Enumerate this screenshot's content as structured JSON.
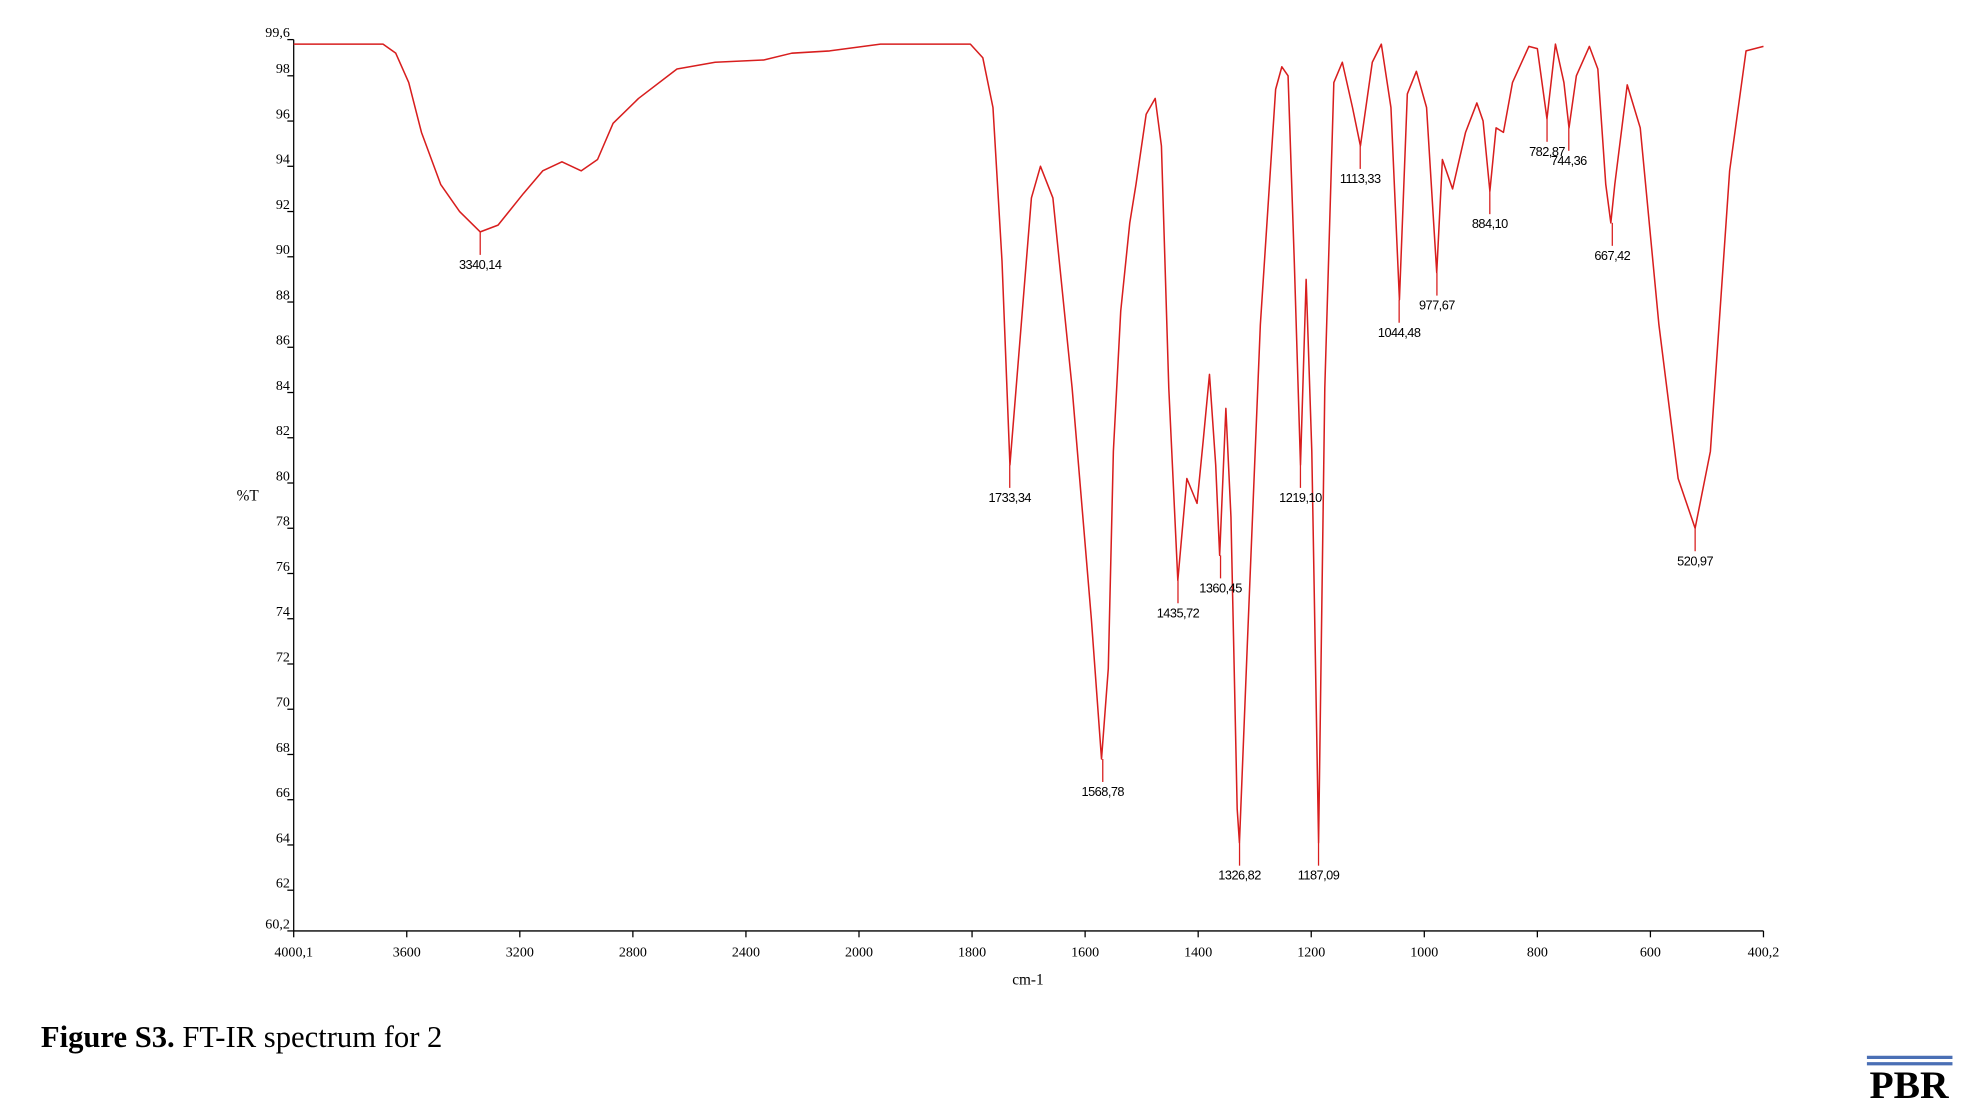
{
  "chart_data": {
    "type": "line",
    "xlabel": "cm-1",
    "ylabel": "%T",
    "color": "#d81e1e",
    "xlim": [
      4000.1,
      400.2
    ],
    "ylim": [
      60.2,
      99.6
    ],
    "xticks": [
      {
        "value": 4000.1,
        "label": "4000,1"
      },
      3600,
      3200,
      2800,
      2400,
      2000,
      1800,
      1600,
      1400,
      1200,
      1000,
      800,
      600,
      {
        "value": 400.2,
        "label": "400,2"
      }
    ],
    "yticks": [
      {
        "value": 60.2,
        "label": "60,2"
      },
      62,
      64,
      66,
      68,
      70,
      72,
      74,
      76,
      78,
      80,
      82,
      84,
      86,
      88,
      90,
      92,
      94,
      96,
      98,
      {
        "value": 99.6,
        "label": "99,6"
      }
    ],
    "x": [
      4000.1,
      3684,
      3639,
      3593,
      3548,
      3480,
      3413,
      3340,
      3277,
      3187,
      3119,
      3051,
      2983,
      2925,
      2870,
      2780,
      2644,
      2509,
      2337,
      2238,
      2104,
      1962,
      1803,
      1781,
      1763,
      1747,
      1733,
      1713,
      1695,
      1679,
      1657,
      1623,
      1589,
      1571,
      1559,
      1550,
      1537,
      1521,
      1510,
      1492,
      1476,
      1465,
      1452,
      1436,
      1420,
      1402,
      1391,
      1380,
      1369,
      1362,
      1351,
      1342,
      1331,
      1327,
      1313,
      1290,
      1263,
      1252,
      1241,
      1230,
      1219,
      1209,
      1199,
      1187,
      1176,
      1160,
      1145,
      1127,
      1113,
      1092,
      1076,
      1059,
      1044,
      1030,
      1014,
      996,
      978,
      968,
      950,
      927,
      907,
      896,
      884,
      873,
      860,
      844,
      815,
      800,
      783,
      768,
      753,
      744,
      731,
      708,
      693,
      679,
      670,
      663,
      641,
      618,
      585,
      551,
      521,
      494,
      460,
      431,
      400.2
    ],
    "values": [
      99.4,
      99.4,
      99.0,
      97.7,
      95.5,
      93.2,
      92.0,
      91.1,
      91.4,
      92.8,
      93.8,
      94.2,
      93.8,
      94.3,
      95.9,
      97.0,
      98.3,
      98.6,
      98.7,
      99.0,
      99.1,
      99.4,
      99.4,
      98.8,
      96.6,
      89.8,
      80.8,
      87.0,
      92.6,
      94.0,
      92.6,
      84.2,
      74.0,
      67.8,
      71.8,
      81.4,
      87.6,
      91.5,
      93.2,
      96.3,
      97.0,
      94.9,
      84.2,
      75.7,
      80.2,
      79.1,
      81.9,
      84.8,
      80.8,
      76.8,
      83.3,
      78.5,
      65.6,
      64.1,
      72.9,
      87.0,
      97.4,
      98.4,
      98.0,
      89.8,
      80.8,
      89.0,
      81.4,
      64.1,
      84.2,
      97.7,
      98.6,
      96.6,
      94.9,
      98.6,
      99.4,
      96.6,
      88.1,
      97.2,
      98.2,
      96.6,
      89.3,
      94.3,
      93.0,
      95.5,
      96.8,
      96.0,
      92.9,
      95.7,
      95.5,
      97.7,
      99.3,
      99.2,
      96.1,
      99.4,
      97.7,
      95.7,
      98.0,
      99.3,
      98.3,
      93.2,
      91.5,
      93.2,
      97.6,
      95.7,
      87.0,
      80.2,
      78.0,
      81.4,
      93.8,
      99.1,
      99.3
    ],
    "peaks": [
      {
        "x": {
          "value": 3340.14,
          "label": "3340,14"
        },
        "y": 91.1
      },
      {
        "x": {
          "value": 1733.34,
          "label": "1733,34"
        },
        "y": 80.8
      },
      {
        "x": {
          "value": 1568.78,
          "label": "1568,78"
        },
        "y": 67.8
      },
      {
        "x": {
          "value": 1435.72,
          "label": "1435,72"
        },
        "y": 75.7
      },
      {
        "x": {
          "value": 1360.45,
          "label": "1360,45"
        },
        "y": 76.8
      },
      {
        "x": {
          "value": 1326.82,
          "label": "1326,82"
        },
        "y": 64.1
      },
      {
        "x": {
          "value": 1219.1,
          "label": "1219,10"
        },
        "y": 80.8
      },
      {
        "x": {
          "value": 1187.09,
          "label": "1187,09"
        },
        "y": 64.1
      },
      {
        "x": {
          "value": 1113.33,
          "label": "1113,33"
        },
        "y": 94.9
      },
      {
        "x": {
          "value": 1044.48,
          "label": "1044,48"
        },
        "y": 88.1
      },
      {
        "x": {
          "value": 977.67,
          "label": "977,67"
        },
        "y": 89.3
      },
      {
        "x": {
          "value": 884.1,
          "label": "884,10"
        },
        "y": 92.9
      },
      {
        "x": {
          "value": 782.87,
          "label": "782,87"
        },
        "y": 96.1
      },
      {
        "x": {
          "value": 744.36,
          "label": "744,36"
        },
        "y": 95.7
      },
      {
        "x": {
          "value": 667.42,
          "label": "667,42"
        },
        "y": 91.5
      },
      {
        "x": {
          "value": 520.97,
          "label": "520,97"
        },
        "y": 78.0
      }
    ]
  },
  "caption": {
    "label": "Figure S3.",
    "text": "FT-IR spectrum for 2"
  },
  "logo": "PBR"
}
